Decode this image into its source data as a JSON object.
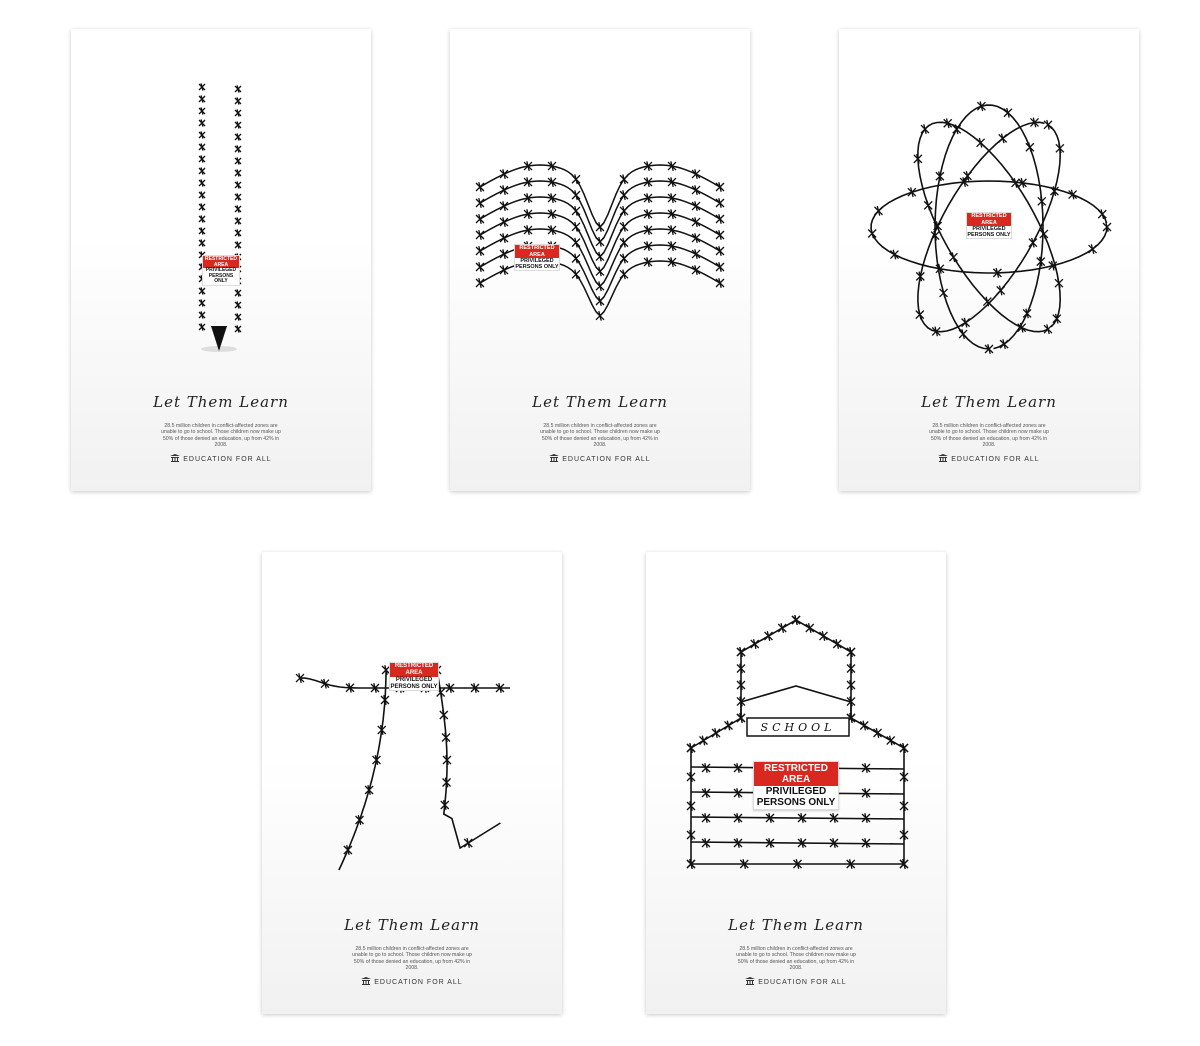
{
  "posters": [
    {
      "id": "pencil",
      "tagline": "Let Them Learn",
      "body": "28.5 million children in conflict-affected zones are unable to go to school. Those children now make up 50% of those denied an education, up from 42% in 2008.",
      "brand": "EDUCATION FOR ALL",
      "sign": {
        "top": "RESTRICTED AREA",
        "bottom": "PRIVILEGED PERSONS ONLY"
      }
    },
    {
      "id": "book",
      "tagline": "Let Them Learn",
      "body": "28.5 million children in conflict-affected zones are unable to go to school. Those children now make up 50% of those denied an education, up from 42% in 2008.",
      "brand": "EDUCATION FOR ALL",
      "sign": {
        "top": "RESTRICTED AREA",
        "bottom": "PRIVILEGED PERSONS ONLY"
      }
    },
    {
      "id": "atom",
      "tagline": "Let Them Learn",
      "body": "28.5 million children in conflict-affected zones are unable to go to school. Those children now make up 50% of those denied an education, up from 42% in 2008.",
      "brand": "EDUCATION FOR ALL",
      "sign": {
        "top": "RESTRICTED AREA",
        "bottom": "PRIVILEGED PERSONS ONLY"
      }
    },
    {
      "id": "pi",
      "tagline": "Let Them Learn",
      "body": "28.5 million children in conflict-affected zones are unable to go to school. Those children now make up 50% of those denied an education, up from 42% in 2008.",
      "brand": "EDUCATION FOR ALL",
      "sign": {
        "top": "RESTRICTED AREA",
        "bottom": "PRIVILEGED PERSONS ONLY"
      }
    },
    {
      "id": "school",
      "tagline": "Let Them Learn",
      "body": "28.5 million children in conflict-affected zones are unable to go to school. Those children now make up 50% of those denied an education, up from 42% in 2008.",
      "brand": "EDUCATION FOR ALL",
      "school_label": "SCHOOL",
      "sign": {
        "top": "RESTRICTED AREA",
        "bottom": "PRIVILEGED PERSONS ONLY"
      }
    }
  ]
}
